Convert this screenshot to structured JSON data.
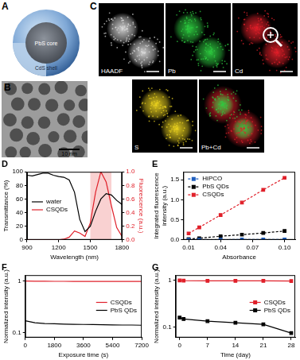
{
  "images": [
    {
      "title": "A",
      "labels": [
        "PbS core",
        "CdS shell"
      ]
    },
    {
      "title": "B",
      "scale_bar": "10 nm"
    },
    {
      "title": "C",
      "maps": [
        {
          "label": "HAADF",
          "color": "#d8d8d8"
        },
        {
          "label": "Pb",
          "color": "#2ecc40"
        },
        {
          "label": "Cd",
          "color": "#e0202a"
        },
        {
          "label": "S",
          "color": "#e8d020"
        },
        {
          "label": "Pb+Cd",
          "colors": [
            "#2ecc40",
            "#e0202a"
          ]
        }
      ]
    }
  ],
  "chart_data": [
    {
      "title": "D",
      "type": "line",
      "x_label": "Wavelength (nm)",
      "y_label": "Transmittance (%)",
      "y2_label": "Fluorescence (a.u.)",
      "x": [
        900,
        950,
        1000,
        1050,
        1100,
        1150,
        1200,
        1250,
        1300,
        1350,
        1400,
        1450,
        1500,
        1550,
        1600,
        1650,
        1700,
        1750,
        1800
      ],
      "xlim": [
        900,
        1800
      ],
      "xticks": [
        900,
        1200,
        1500,
        1800
      ],
      "ylim": [
        0,
        100
      ],
      "yticks": [
        0,
        20,
        40,
        60,
        80,
        100
      ],
      "y2lim": [
        0,
        1
      ],
      "y2ticks": [
        {
          "value": 0,
          "label": "0.0"
        },
        0.2,
        0.4,
        0.6,
        0.8,
        {
          "value": 1,
          "label": "1.0"
        }
      ],
      "highlight_range": [
        1500,
        1700
      ],
      "legend": "center left",
      "series": [
        {
          "name": "water",
          "color": "#000000",
          "values": [
            95,
            94,
            96,
            98,
            98,
            95,
            93,
            92,
            88,
            70,
            30,
            12,
            20,
            42,
            60,
            68,
            66,
            58,
            52
          ]
        },
        {
          "name": "CSQDs",
          "color": "#e0202a",
          "axis": "y2",
          "values": [
            0,
            0,
            0,
            0,
            0,
            0,
            0,
            0.01,
            0.04,
            0.13,
            0.1,
            0.05,
            0.25,
            0.7,
            1,
            0.85,
            0.5,
            0.18,
            0.05
          ]
        }
      ]
    },
    {
      "title": "E",
      "type": "scatter",
      "x_label": "Absorbance",
      "y_label": [
        "Integrated fluorescence",
        "intensity (a.u.)"
      ],
      "x": [
        0.01,
        0.02,
        0.04,
        0.06,
        0.08,
        0.1
      ],
      "xlim": [
        0.005,
        0.11
      ],
      "xticks": [
        0.01,
        0.04,
        0.07,
        {
          "value": 0.1,
          "label": "0.10"
        }
      ],
      "ylim": [
        0,
        1.7
      ],
      "yticks": [
        {
          "value": 0,
          "label": "0.0"
        },
        0.5,
        {
          "value": 1,
          "label": "1.0"
        },
        1.5
      ],
      "marker": "square",
      "line_style": "dashed",
      "legend": "upper left",
      "series": [
        {
          "name": "HiPCO",
          "color": "#1f5fbf",
          "values": [
            0.004,
            0.005,
            0.006,
            0.007,
            0.008,
            0.009
          ]
        },
        {
          "name": "PbS QDs",
          "color": "#000000",
          "values": [
            0.02,
            0.04,
            0.09,
            0.13,
            0.17,
            0.22
          ]
        },
        {
          "name": "CSQDs",
          "color": "#e0202a",
          "values": [
            0.16,
            0.31,
            0.62,
            0.93,
            1.25,
            1.55
          ]
        }
      ]
    },
    {
      "title": "F",
      "type": "line",
      "log": "y",
      "x_label": "Exposure time (s)",
      "y_label": "Normalized intensity (a.u.)",
      "x": [
        0,
        600,
        1200,
        1800,
        2400,
        3000,
        3600,
        4200,
        4800,
        5400,
        6000,
        6600,
        7200
      ],
      "xlim": [
        0,
        7200
      ],
      "xticks": [
        0,
        1800,
        3600,
        5400,
        7200
      ],
      "ylim": [
        0.08,
        1.3
      ],
      "yticks": [
        0.1,
        1
      ],
      "legend": "center right",
      "series": [
        {
          "name": "CSQDs",
          "color": "#e0202a",
          "values": [
            1,
            0.99,
            0.99,
            0.985,
            0.985,
            0.98,
            0.98,
            0.98,
            0.98,
            0.98,
            0.98,
            0.98,
            0.98
          ]
        },
        {
          "name": "PbS QDs",
          "color": "#000000",
          "values": [
            0.17,
            0.155,
            0.15,
            0.148,
            0.146,
            0.145,
            0.144,
            0.143,
            0.142,
            0.141,
            0.14,
            0.14,
            0.139
          ]
        }
      ]
    },
    {
      "title": "G",
      "type": "line",
      "log": "y",
      "marker": "square",
      "x_label": "Time (day)",
      "y_label": "Normalized intensity (a.u.)",
      "x": [
        0,
        1,
        7,
        14,
        21,
        28
      ],
      "xlim": [
        -1,
        29
      ],
      "xticks": [
        0,
        7,
        14,
        21,
        28
      ],
      "ylim": [
        0.06,
        1.3
      ],
      "yticks": [
        0.1,
        1
      ],
      "legend": "center right",
      "series": [
        {
          "name": "CSQDs",
          "color": "#e0202a",
          "values": [
            1,
            0.99,
            0.98,
            0.98,
            0.98,
            0.97
          ]
        },
        {
          "name": "PbS QDs",
          "color": "#000000",
          "values": [
            0.16,
            0.15,
            0.135,
            0.125,
            0.115,
            0.075
          ]
        }
      ]
    }
  ]
}
